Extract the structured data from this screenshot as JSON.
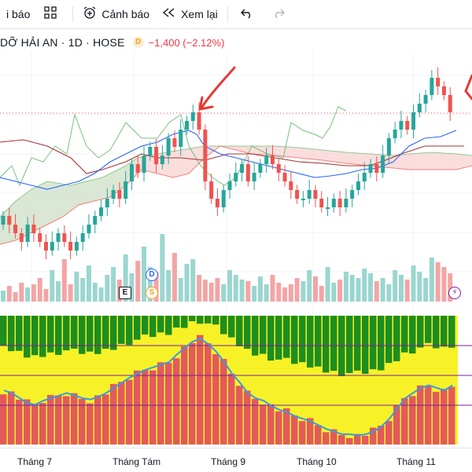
{
  "toolbar": {
    "alerts_partial": "i báo",
    "alert_label": "Cảnh báo",
    "replay_label": "Xem lại"
  },
  "legend": {
    "symbol": "DỠ HẢI AN · 1D · HOSE",
    "badge": "D",
    "change": "−1,400 (−2.12%)"
  },
  "badges": {
    "d": "D",
    "s": "S",
    "e": "E"
  },
  "xaxis": {
    "labels": [
      "Tháng 7",
      "Tháng Tám",
      "Tháng 9",
      "Tháng 10",
      "Tháng 11"
    ]
  },
  "colors": {
    "up": "#26a69a",
    "down": "#ef5350",
    "annotation": "#e53935",
    "oscillator_red": "#e35a5a",
    "oscillator_yellow": "#f7f227",
    "oscillator_green": "#1e8e1e",
    "oscillator_line": "#3b9ae1"
  },
  "chart_data": {
    "type": "candlestick",
    "note_series": [
      "price candles",
      "Ichimoku cloud",
      "volume bars",
      "oscillator"
    ],
    "price_path": [
      56,
      55,
      54,
      53,
      55,
      54,
      53,
      52,
      53,
      54,
      53,
      52,
      53,
      54,
      55,
      56,
      57,
      58,
      59,
      58,
      60,
      62,
      61,
      63,
      64,
      62,
      63,
      65,
      64,
      66,
      67,
      68,
      66,
      60,
      58,
      57,
      59,
      60,
      61,
      62,
      60,
      61,
      62,
      63,
      62,
      61,
      60,
      59,
      58,
      58,
      59,
      58,
      57,
      57,
      58,
      57,
      58,
      59,
      60,
      61,
      62,
      61,
      63,
      65,
      66,
      67,
      66,
      68,
      69,
      70,
      72,
      71,
      70,
      68
    ],
    "oscillator_line": [
      42,
      40,
      36,
      32,
      31,
      34,
      36,
      38,
      40,
      38,
      36,
      35,
      37,
      40,
      44,
      48,
      52,
      55,
      58,
      60,
      62,
      64,
      70,
      75,
      80,
      82,
      78,
      72,
      64,
      55,
      48,
      40,
      36,
      34,
      30,
      27,
      25,
      22,
      20,
      18,
      15,
      12,
      10,
      8,
      8,
      7,
      8,
      10,
      14,
      20,
      28,
      36,
      40,
      44,
      46,
      44,
      42,
      46
    ]
  }
}
